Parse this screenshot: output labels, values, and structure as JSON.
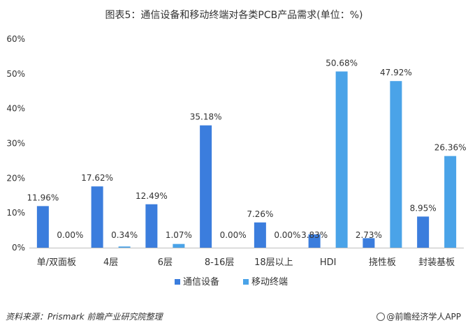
{
  "chart_data": {
    "type": "bar",
    "title": "图表5：通信设备和移动终端对各类PCB产品需求(单位：%)",
    "categories": [
      "单/双面板",
      "4层",
      "6层",
      "8-16层",
      "18层以上",
      "HDI",
      "挠性板",
      "封装基板"
    ],
    "series": [
      {
        "name": "通信设备",
        "color": "#3b7ddd",
        "values": [
          11.96,
          17.62,
          12.49,
          35.18,
          7.26,
          3.83,
          2.73,
          8.95
        ],
        "labels": [
          "11.96%",
          "17.62%",
          "12.49%",
          "35.18%",
          "7.26%",
          "3.83%",
          "2.73%",
          "8.95%"
        ]
      },
      {
        "name": "移动终端",
        "color": "#4aa3e8",
        "values": [
          0.0,
          0.34,
          1.07,
          0.0,
          0.0,
          50.68,
          47.92,
          26.36
        ],
        "labels": [
          "0.00%",
          "0.34%",
          "1.07%",
          "0.00%",
          "0.00%",
          "50.68%",
          "47.92%",
          "26.36%"
        ]
      }
    ],
    "ylim": [
      0,
      60
    ],
    "yticks": [
      0,
      10,
      20,
      30,
      40,
      50,
      60
    ],
    "ytick_labels": [
      "0%",
      "10%",
      "20%",
      "30%",
      "40%",
      "50%",
      "60%"
    ],
    "grid": false,
    "legend_position": "bottom"
  },
  "footer": {
    "source": "资料来源：Prismark 前瞻产业研究院整理",
    "brand": "@前瞻经济学人APP"
  }
}
